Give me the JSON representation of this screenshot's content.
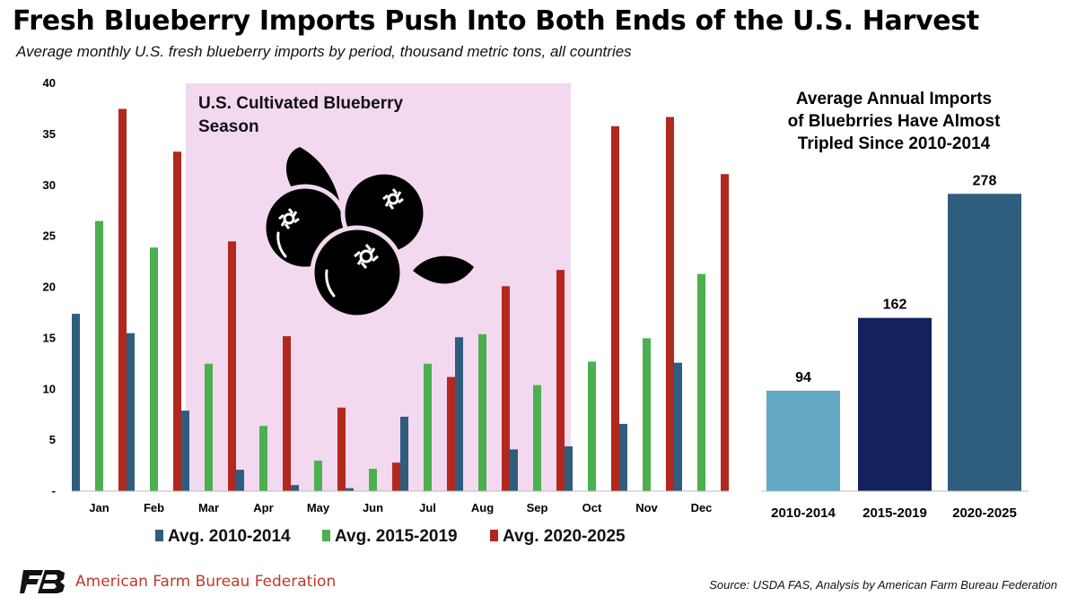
{
  "header": {
    "title": "Fresh Blueberry Imports Push Into Both Ends of the U.S. Harvest",
    "subtitle": "Average monthly U.S. fresh blueberry imports by period, thousand metric tons, all countries"
  },
  "chart_data": [
    {
      "type": "bar",
      "categories": [
        "Jan",
        "Feb",
        "Mar",
        "Apr",
        "May",
        "Jun",
        "Jul",
        "Aug",
        "Sep",
        "Oct",
        "Nov",
        "Dec"
      ],
      "series": [
        {
          "name": "Avg. 2010-2014",
          "color": "#2f5d7e",
          "values": [
            17.4,
            15.5,
            7.9,
            2.1,
            0.6,
            0.3,
            7.3,
            15.1,
            4.1,
            4.4,
            6.6,
            12.6
          ]
        },
        {
          "name": "Avg. 2015-2019",
          "color": "#4caf50",
          "values": [
            26.5,
            23.9,
            12.5,
            6.4,
            3.0,
            2.2,
            12.5,
            15.4,
            10.4,
            12.7,
            15.0,
            21.3
          ]
        },
        {
          "name": "Avg. 2020-2025",
          "color": "#b2281e",
          "values": [
            37.5,
            33.3,
            24.5,
            15.2,
            8.2,
            2.8,
            11.2,
            20.1,
            21.7,
            35.8,
            36.7,
            31.1
          ]
        }
      ],
      "yticks": [
        "-",
        "5",
        "10",
        "15",
        "20",
        "25",
        "30",
        "35",
        "40"
      ],
      "ylim": [
        0,
        40
      ],
      "annotation": {
        "lines": [
          "U.S. Cultivated Blueberry",
          "Season"
        ],
        "color": "#f2d9ef",
        "from": "Mar",
        "to": "Oct"
      },
      "icon": "blueberry-icon",
      "grid": false,
      "legend_position": "bottom"
    },
    {
      "type": "bar",
      "title_lines": [
        "Average Annual Imports",
        "of Bluebrries Have Almost",
        "Tripled Since 2010-2014"
      ],
      "categories": [
        "2010-2014",
        "2015-2019",
        "2020-2025"
      ],
      "values": [
        94,
        162,
        278
      ],
      "data_labels": [
        "94",
        "162",
        "278"
      ],
      "colors": [
        "#63a9c4",
        "#13215d",
        "#2f5d7e"
      ],
      "ylim": [
        0,
        300
      ],
      "grid": false
    }
  ],
  "footer": {
    "logo_icon": "afbf-logo-icon",
    "org_name": "American Farm Bureau Federation",
    "source": "Source: USDA FAS, Analysis by American Farm Bureau Federation"
  }
}
